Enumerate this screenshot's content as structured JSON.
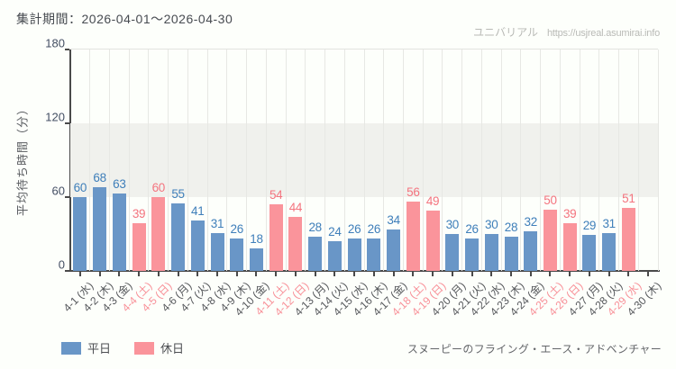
{
  "header": {
    "period_label": "集計期間：2026-04-01～2026-04-30",
    "watermark_name": "ユニバリアル",
    "watermark_url": "https://usjreal.asumirai.info"
  },
  "chart_data": {
    "type": "bar",
    "title": "",
    "xlabel": "",
    "ylabel": "平均待ち時間（分）",
    "ylim": [
      0,
      180
    ],
    "yticks": [
      0,
      60,
      120,
      180
    ],
    "grid": "vertical-gridlines-with-horizontal-band-shading",
    "legend_position": "bottom-left",
    "categories": [
      "4-1 (水)",
      "4-2 (木)",
      "4-3 (金)",
      "4-4 (土)",
      "4-5 (日)",
      "4-6 (月)",
      "4-7 (火)",
      "4-8 (水)",
      "4-9 (木)",
      "4-10 (金)",
      "4-11 (土)",
      "4-12 (日)",
      "4-13 (月)",
      "4-14 (火)",
      "4-15 (水)",
      "4-16 (木)",
      "4-17 (金)",
      "4-18 (土)",
      "4-19 (日)",
      "4-20 (月)",
      "4-21 (火)",
      "4-22 (水)",
      "4-23 (木)",
      "4-24 (金)",
      "4-25 (土)",
      "4-26 (日)",
      "4-27 (月)",
      "4-28 (火)",
      "4-29 (水)",
      "4-30 (木)"
    ],
    "values": [
      60,
      68,
      63,
      39,
      60,
      55,
      41,
      31,
      26,
      18,
      54,
      44,
      28,
      24,
      26,
      26,
      34,
      56,
      49,
      30,
      26,
      30,
      28,
      32,
      50,
      39,
      29,
      31,
      51,
      null
    ],
    "day_types": [
      "weekday",
      "weekday",
      "weekday",
      "holiday",
      "holiday",
      "weekday",
      "weekday",
      "weekday",
      "weekday",
      "weekday",
      "holiday",
      "holiday",
      "weekday",
      "weekday",
      "weekday",
      "weekday",
      "weekday",
      "holiday",
      "holiday",
      "weekday",
      "weekday",
      "weekday",
      "weekday",
      "weekday",
      "holiday",
      "holiday",
      "weekday",
      "weekday",
      "holiday",
      "weekday"
    ],
    "colors": {
      "weekday_bar": "#6996c7",
      "holiday_bar": "#fa949b",
      "weekday_value_label": "#3f7fba",
      "holiday_value_label": "#f4747f",
      "weekday_axis_label": "#54565a",
      "holiday_axis_label": "#f88f97",
      "band_shade": "#f0f1ed"
    },
    "legend": [
      {
        "label": "平日",
        "type": "weekday"
      },
      {
        "label": "休日",
        "type": "holiday"
      }
    ]
  },
  "footer": {
    "attraction_name": "スヌーピーのフライング・エース・アドベンチャー"
  }
}
